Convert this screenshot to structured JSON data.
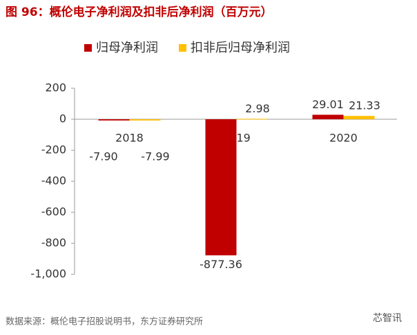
{
  "chart_data": {
    "type": "bar",
    "title": "图 96：概伦电子净利润及扣非后净利润（百万元）",
    "categories": [
      "2018",
      "2019",
      "2020"
    ],
    "series": [
      {
        "name": "归母净利润",
        "color": "#c00000",
        "values": [
          -7.9,
          -877.36,
          29.01
        ],
        "value_labels": [
          "-7.90",
          "-877.36",
          "29.01"
        ]
      },
      {
        "name": "扣非后归母净利润",
        "color": "#ffc000",
        "values": [
          -7.99,
          2.98,
          21.33
        ],
        "value_labels": [
          "-7.99",
          "2.98",
          "21.33"
        ]
      }
    ],
    "ylim": [
      -1000,
      200
    ],
    "yticks": [
      200,
      0,
      -200,
      -400,
      -600,
      -800,
      {
        "value": -1000,
        "label": "-1,000"
      }
    ],
    "source": "数据来源：概伦电子招股说明书，东方证券研究所",
    "watermark": "芯智讯"
  }
}
